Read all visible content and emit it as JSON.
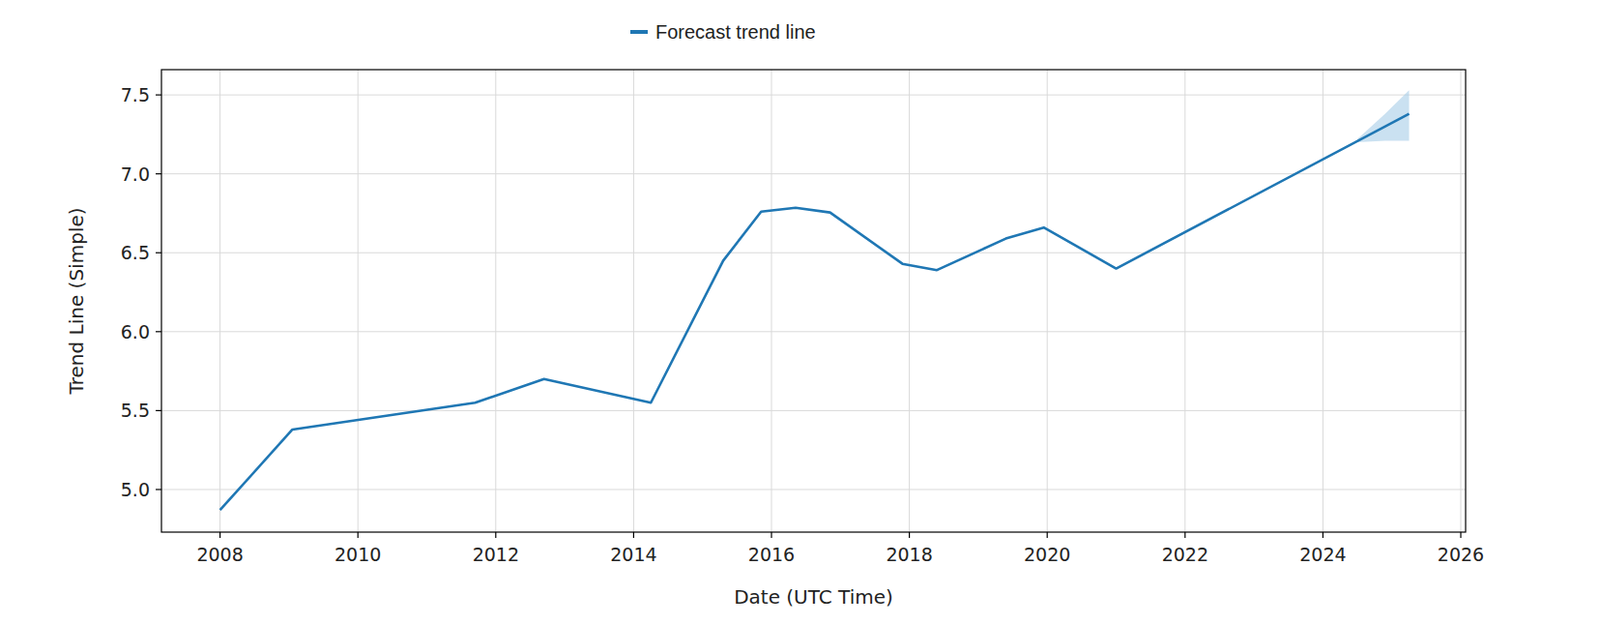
{
  "chart_data": {
    "type": "line",
    "legend": "upper center",
    "x_label": "Date (UTC Time)",
    "y_label": "Trend Line (Simple)",
    "x": [
      2008.0,
      2009.05,
      2011.7,
      2012.7,
      2014.25,
      2015.3,
      2015.85,
      2016.35,
      2016.85,
      2017.9,
      2018.4,
      2019.4,
      2019.95,
      2021.0,
      2025.25
    ],
    "series": [
      {
        "name": "Forecast trend line",
        "color": "#1f77b4",
        "values": [
          4.87,
          5.38,
          5.55,
          5.7,
          5.55,
          6.45,
          6.76,
          6.785,
          6.755,
          6.43,
          6.39,
          6.59,
          6.66,
          6.4,
          7.38
        ]
      }
    ],
    "interval": {
      "x": [
        2024.5,
        2024.9,
        2025.25
      ],
      "lower": [
        7.2,
        7.21,
        7.21
      ],
      "upper": [
        7.22,
        7.38,
        7.53
      ],
      "color": "#a6cde8"
    },
    "xlim": [
      2007.15,
      2026.07
    ],
    "ylim": [
      4.73,
      7.66
    ],
    "xticks": [
      2008,
      2010,
      2012,
      2014,
      2016,
      2018,
      2020,
      2022,
      2024,
      2026
    ],
    "yticks": [
      {
        "value": 5,
        "label": "5.0"
      },
      5.5,
      {
        "value": 6,
        "label": "6.0"
      },
      6.5,
      {
        "value": 7,
        "label": "7.0"
      },
      7.5
    ],
    "grid": true
  }
}
